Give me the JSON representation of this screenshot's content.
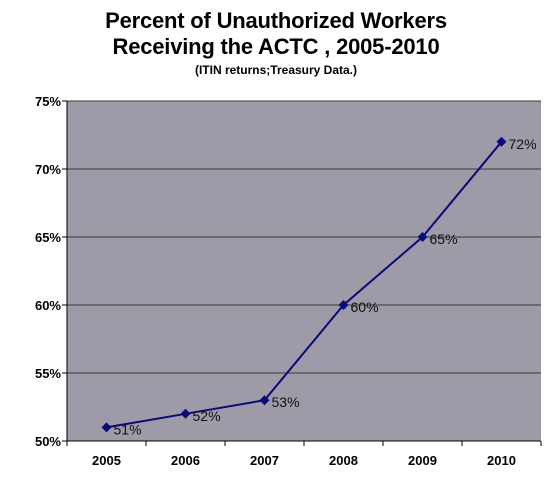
{
  "chart_data": {
    "type": "line",
    "title_line1": "Percent of Unauthorized Workers",
    "title_line2": "Receiving the ACTC , 2005-2010",
    "subtitle": "(ITIN returns;Treasury Data.)",
    "xlabel": "",
    "ylabel": "",
    "categories": [
      "2005",
      "2006",
      "2007",
      "2008",
      "2009",
      "2010"
    ],
    "series": [
      {
        "values": [
          51,
          52,
          53,
          60,
          65,
          72
        ],
        "data_labels": [
          "51%",
          "52%",
          "53%",
          "60%",
          "65%",
          "72%"
        ]
      }
    ],
    "ylim": [
      50,
      75
    ],
    "yticks": [
      50,
      55,
      60,
      65,
      70,
      75
    ],
    "ytick_labels": [
      "50%",
      "55%",
      "60%",
      "65%",
      "70%",
      "75%"
    ],
    "grid": true,
    "legend": "none",
    "colors": {
      "plot_bg": "#9e9aa8",
      "line": "#0a0a7a",
      "grid": "#3a3a3a"
    }
  }
}
